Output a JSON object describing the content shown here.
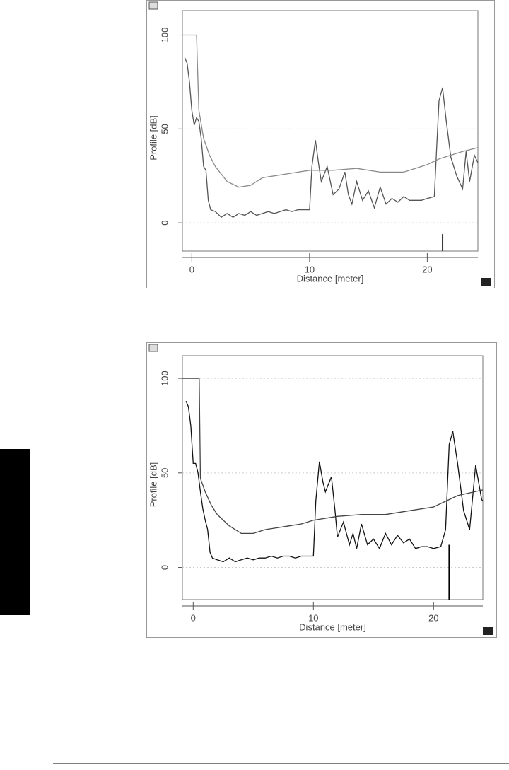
{
  "chart_data": [
    {
      "type": "line",
      "xlabel": "Distance [meter]",
      "ylabel": "Profile [dB]",
      "xlim": [
        -0.8,
        24.3
      ],
      "ylim": [
        -15,
        113
      ],
      "xticks": [
        0,
        10,
        20
      ],
      "yticks": [
        0,
        50,
        100
      ],
      "grid": true,
      "marker": {
        "x": 21.3,
        "top": -6,
        "color": "#333333"
      },
      "series": [
        {
          "color": "#555555",
          "x": [
            -0.6,
            -0.4,
            -0.2,
            0,
            0.2,
            0.4,
            0.6,
            0.8,
            1,
            1.2,
            1.4,
            1.6,
            2,
            2.5,
            3,
            3.5,
            4,
            4.5,
            5,
            5.5,
            6,
            6.5,
            7,
            7.5,
            8,
            8.5,
            9,
            9.5,
            10,
            10.2,
            10.5,
            10.8,
            11,
            11.5,
            12,
            12.5,
            13,
            13.3,
            13.6,
            14,
            14.5,
            15,
            15.5,
            16,
            16.5,
            17,
            17.5,
            18,
            18.5,
            19,
            19.5,
            20,
            20.6,
            20.8,
            21,
            21.3,
            21.6,
            22,
            22.5,
            23,
            23.3,
            23.6,
            24,
            24.3
          ],
          "values": [
            88,
            85,
            75,
            60,
            52,
            56,
            54,
            45,
            30,
            28,
            12,
            7,
            6,
            3,
            5,
            3,
            5,
            4,
            6,
            4,
            5,
            6,
            5,
            6,
            7,
            6,
            7,
            7,
            7,
            30,
            44,
            30,
            22,
            30,
            15,
            18,
            27,
            15,
            10,
            22,
            12,
            17,
            8,
            19,
            10,
            13,
            11,
            14,
            12,
            12,
            12,
            13,
            14,
            40,
            65,
            72,
            55,
            35,
            25,
            18,
            38,
            22,
            36,
            32
          ]
        },
        {
          "color": "#8a8a8a",
          "x": [
            -0.8,
            0.4,
            0.6,
            1,
            1.5,
            2,
            3,
            4,
            5,
            6,
            8,
            10,
            12,
            14,
            16,
            18,
            19,
            20,
            21,
            22,
            23,
            24.3
          ],
          "values": [
            100,
            100,
            60,
            45,
            36,
            30,
            22,
            19,
            20,
            24,
            26,
            28,
            28,
            29,
            27,
            27,
            29,
            31,
            34,
            36,
            38,
            40
          ]
        }
      ]
    },
    {
      "type": "line",
      "xlabel": "Distance [meter]",
      "ylabel": "Profile [dB]",
      "xlim": [
        -0.9,
        24.1
      ],
      "ylim": [
        -17,
        112
      ],
      "xticks": [
        0,
        10,
        20
      ],
      "yticks": [
        0,
        50,
        100
      ],
      "grid": true,
      "marker": {
        "x": 21.3,
        "top": 12,
        "color": "#000000"
      },
      "series": [
        {
          "color": "#111111",
          "x": [
            -0.6,
            -0.4,
            -0.2,
            0,
            0.2,
            0.4,
            0.6,
            0.8,
            1,
            1.2,
            1.4,
            1.6,
            2,
            2.5,
            3,
            3.5,
            4,
            4.5,
            5,
            5.5,
            6,
            6.5,
            7,
            7.5,
            8,
            8.5,
            9,
            9.5,
            10,
            10.2,
            10.5,
            10.8,
            11,
            11.5,
            11.8,
            12,
            12.5,
            13,
            13.3,
            13.6,
            14,
            14.5,
            15,
            15.5,
            16,
            16.5,
            17,
            17.5,
            18,
            18.5,
            19,
            19.5,
            20,
            20.6,
            21,
            21.3,
            21.6,
            22,
            22.5,
            23,
            23.5,
            24,
            24.1
          ],
          "values": [
            88,
            85,
            75,
            55,
            55,
            50,
            40,
            31,
            25,
            20,
            8,
            5,
            4,
            3,
            5,
            3,
            4,
            5,
            4,
            5,
            5,
            6,
            5,
            6,
            6,
            5,
            6,
            6,
            6,
            35,
            56,
            45,
            40,
            48,
            30,
            16,
            24,
            12,
            18,
            10,
            23,
            12,
            15,
            10,
            18,
            12,
            17,
            13,
            15,
            10,
            11,
            11,
            10,
            11,
            20,
            65,
            72,
            55,
            30,
            20,
            54,
            36,
            35
          ]
        },
        {
          "color": "#444444",
          "x": [
            -0.9,
            0.5,
            0.6,
            1,
            1.5,
            2,
            3,
            4,
            5,
            6,
            8,
            9,
            10,
            12,
            14,
            16,
            18,
            20,
            22,
            24.1
          ],
          "values": [
            100,
            100,
            47,
            40,
            33,
            28,
            22,
            18,
            18,
            20,
            22,
            23,
            25,
            27,
            28,
            28,
            30,
            32,
            38,
            41
          ]
        }
      ]
    }
  ]
}
